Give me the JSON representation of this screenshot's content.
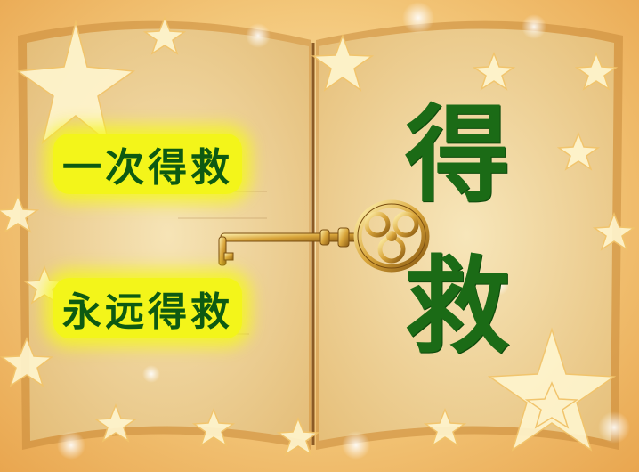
{
  "left_page": {
    "line_1": "一次得救",
    "line_2": "永远得救"
  },
  "right_page": {
    "char_1": "得",
    "char_2": "救"
  },
  "colors": {
    "text_green": "#1b6b16",
    "highlight_yellow": "#f3f51a",
    "paper": "#f1d9a2"
  },
  "decorations": [
    "open-book",
    "golden-key",
    "stars"
  ]
}
